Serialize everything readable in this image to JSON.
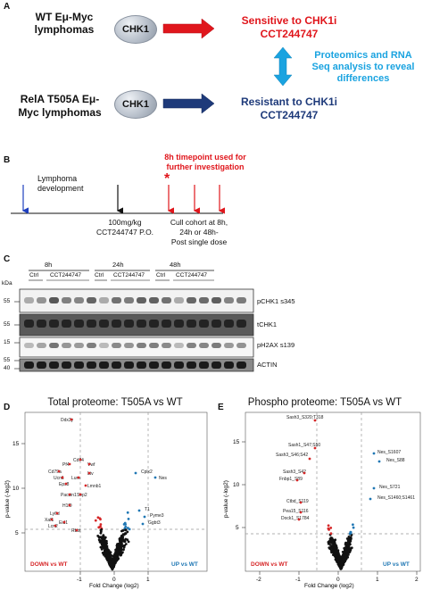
{
  "panel_a": {
    "letter": "A",
    "wt_line1": "WT Eμ-Myc",
    "wt_line2": "lymphomas",
    "rela_line1": "RelA T505A Eμ-",
    "rela_line2": "Myc lymphomas",
    "node_label": "CHK1",
    "sensitive_line1": "Sensitive to CHK1i",
    "sensitive_line2": "CCT244747",
    "resistant_line1": "Resistant to CHK1i",
    "resistant_line2": "CCT244747",
    "proteomics_line1": "Proteomics and RNA",
    "proteomics_line2": "Seq analysis to reveal",
    "proteomics_line3": "differences",
    "colors": {
      "sensitive": "#e0161c",
      "resistant": "#1e3a7a",
      "proteomics": "#1aa3e0",
      "red_arrow": "#e0161c",
      "navy_arrow": "#1e3a7a"
    }
  },
  "panel_b": {
    "letter": "B",
    "timepoint_line1": "8h timepoint used for",
    "timepoint_line2": "further investigation",
    "star": "*",
    "lymphoma_line1": "Lymphoma",
    "lymphoma_line2": "development",
    "dose_line1": "100mg/kg",
    "dose_line2": "CCT244747 P.O.",
    "cull_line1": "Cull cohort at 8h,",
    "cull_line2": "24h or 48h-",
    "cull_line3": "Post single dose"
  },
  "panel_c": {
    "letter": "C",
    "kda": "kDa",
    "time_labels": [
      "8h",
      "24h",
      "48h"
    ],
    "group_labels": [
      "Ctrl",
      "CCT244747",
      "Ctrl",
      "CCT244747",
      "Ctrl",
      "CCT244747"
    ],
    "marker_labels": [
      "55",
      "55",
      "15",
      "55",
      "40"
    ],
    "blot_labels": [
      "pCHK1 s345",
      "tCHK1",
      "pH2AX s139",
      "ACTIN"
    ]
  },
  "panel_d": {
    "letter": "D",
    "title": "Total proteome: T505A vs WT",
    "xlabel": "Fold Change (log2)",
    "ylabel": "p-value (-log2)",
    "down_label": "DOWN vs WT",
    "up_label": "UP vs WT",
    "x_ticks": [
      "-1",
      "0",
      "1"
    ],
    "y_ticks": [
      "5",
      "10",
      "15"
    ],
    "gene_labels": [
      "Ddx3y",
      "Cd74",
      "Pf4",
      "Vwf",
      "Cd79a",
      "Ucn1",
      "Lum",
      "Ltv",
      "Eps8",
      "Lmnb1",
      "Pacsin1",
      "Sep2",
      "Ly6d",
      "H1f0",
      "Xaf1",
      "Lcn2",
      "Eid1",
      "Rbbt",
      "Cplx2",
      "Nes",
      "T1",
      "Pyme3",
      "Ggbt3"
    ]
  },
  "panel_e": {
    "letter": "E",
    "title": "Phospho proteome: T505A vs WT",
    "xlabel": "Fold Change (log2)",
    "ylabel": "p-value (-log2)",
    "down_label": "DOWN vs WT",
    "up_label": "UP vs WT",
    "x_ticks": [
      "-2",
      "-1",
      "0",
      "1",
      "2"
    ],
    "y_ticks": [
      "5",
      "10",
      "15"
    ],
    "gene_labels": [
      "Sash3_S320;T318",
      "Sash1_S47;S50",
      "Sash3_S46;S42",
      "Nes_S1607",
      "Nes_S88",
      "Sash3_S42",
      "Fnbp1_S89",
      "Ctbd_S119",
      "Pea15_S116",
      "Dock1_S1784",
      "Nes_S721",
      "Nes_S1460;S1461"
    ]
  }
}
